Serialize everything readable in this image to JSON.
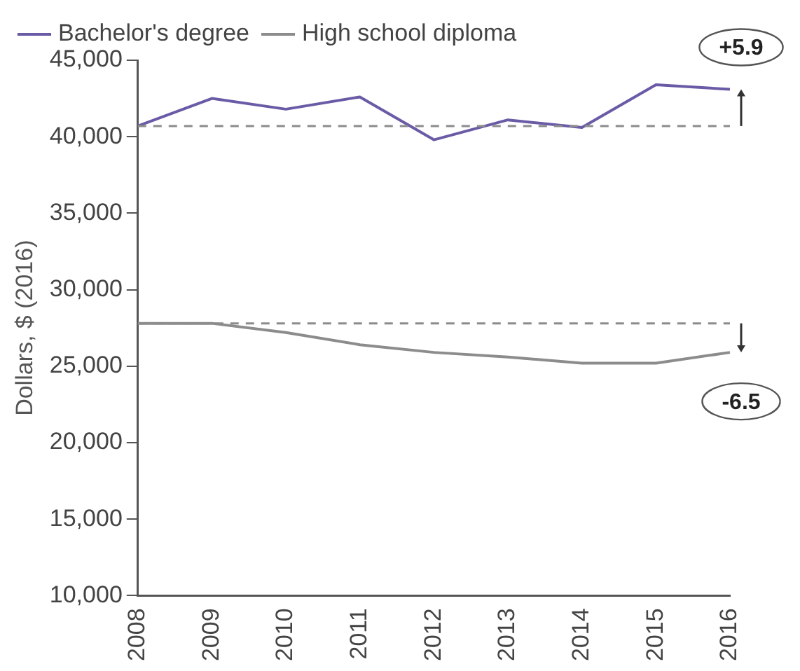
{
  "chart_data": {
    "type": "line",
    "ylabel": "Dollars, $ (2016)",
    "categories": [
      "2008",
      "2009",
      "2010",
      "2011",
      "2012",
      "2013",
      "2014",
      "2015",
      "2016"
    ],
    "series": [
      {
        "name": "Bachelor's degree",
        "color": "#6b5ba6",
        "values": [
          40700,
          42500,
          41800,
          42600,
          39800,
          41100,
          40600,
          43400,
          43100
        ]
      },
      {
        "name": "High school diploma",
        "color": "#8c8c8c",
        "values": [
          27800,
          27800,
          27200,
          26400,
          25900,
          25600,
          25200,
          25200,
          25900
        ]
      }
    ],
    "ylim": [
      10000,
      45000
    ],
    "yticks": [
      {
        "value": 10000,
        "label": "10,000"
      },
      {
        "value": 15000,
        "label": "15,000"
      },
      {
        "value": 20000,
        "label": "20,000"
      },
      {
        "value": 25000,
        "label": "25,000"
      },
      {
        "value": 30000,
        "label": "30,000"
      },
      {
        "value": 35000,
        "label": "35,000"
      },
      {
        "value": 40000,
        "label": "40,000"
      },
      {
        "value": 45000,
        "label": "45,000"
      }
    ],
    "ref_lines": [
      {
        "axis": "y",
        "value": 40700,
        "color": "#8c8c8c",
        "line_style": "dashed"
      },
      {
        "axis": "y",
        "value": 27800,
        "color": "#8c8c8c",
        "line_style": "dashed"
      }
    ],
    "annotations": [
      "+5.9",
      "-6.5"
    ],
    "grid": false,
    "legend": "top left",
    "marker": "none",
    "line_style": "solid"
  }
}
